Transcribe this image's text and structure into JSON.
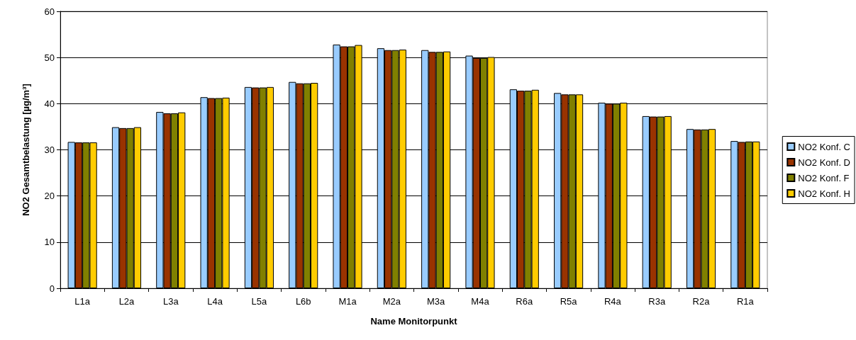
{
  "chart_data": {
    "type": "bar",
    "xlabel": "Name Monitorpunkt",
    "ylabel": "NO2 Gesamtbelastung [µg/m³]",
    "categories": [
      "L1a",
      "L2a",
      "L3a",
      "L4a",
      "L5a",
      "L6b",
      "M1a",
      "M2a",
      "M3a",
      "M4a",
      "R6a",
      "R5a",
      "R4a",
      "R3a",
      "R2a",
      "R1a"
    ],
    "series": [
      {
        "name": "NO2 Konf. C",
        "color": "#99ccff",
        "values": [
          31.7,
          34.9,
          38.2,
          41.4,
          43.6,
          44.7,
          52.8,
          52.0,
          51.6,
          50.4,
          43.1,
          42.3,
          40.2,
          37.3,
          34.5,
          31.9
        ]
      },
      {
        "name": "NO2 Konf. D",
        "color": "#993300",
        "values": [
          31.6,
          34.7,
          37.9,
          41.2,
          43.5,
          44.4,
          52.4,
          51.6,
          51.2,
          49.9,
          42.8,
          42.0,
          40.0,
          37.2,
          34.4,
          31.7
        ]
      },
      {
        "name": "NO2 Konf. F",
        "color": "#808000",
        "values": [
          31.6,
          34.7,
          37.9,
          41.2,
          43.5,
          44.4,
          52.4,
          51.6,
          51.2,
          49.9,
          42.8,
          42.0,
          40.0,
          37.2,
          34.4,
          31.8
        ]
      },
      {
        "name": "NO2 Konf. H",
        "color": "#ffcc00",
        "values": [
          31.6,
          34.9,
          38.1,
          41.3,
          43.6,
          44.5,
          52.7,
          51.7,
          51.3,
          50.1,
          43.0,
          42.0,
          40.2,
          37.3,
          34.5,
          31.8
        ]
      }
    ],
    "ylim": [
      0,
      60
    ],
    "yticks": [
      0,
      10,
      20,
      30,
      40,
      50,
      60
    ],
    "grid": "y",
    "legend": "right"
  }
}
